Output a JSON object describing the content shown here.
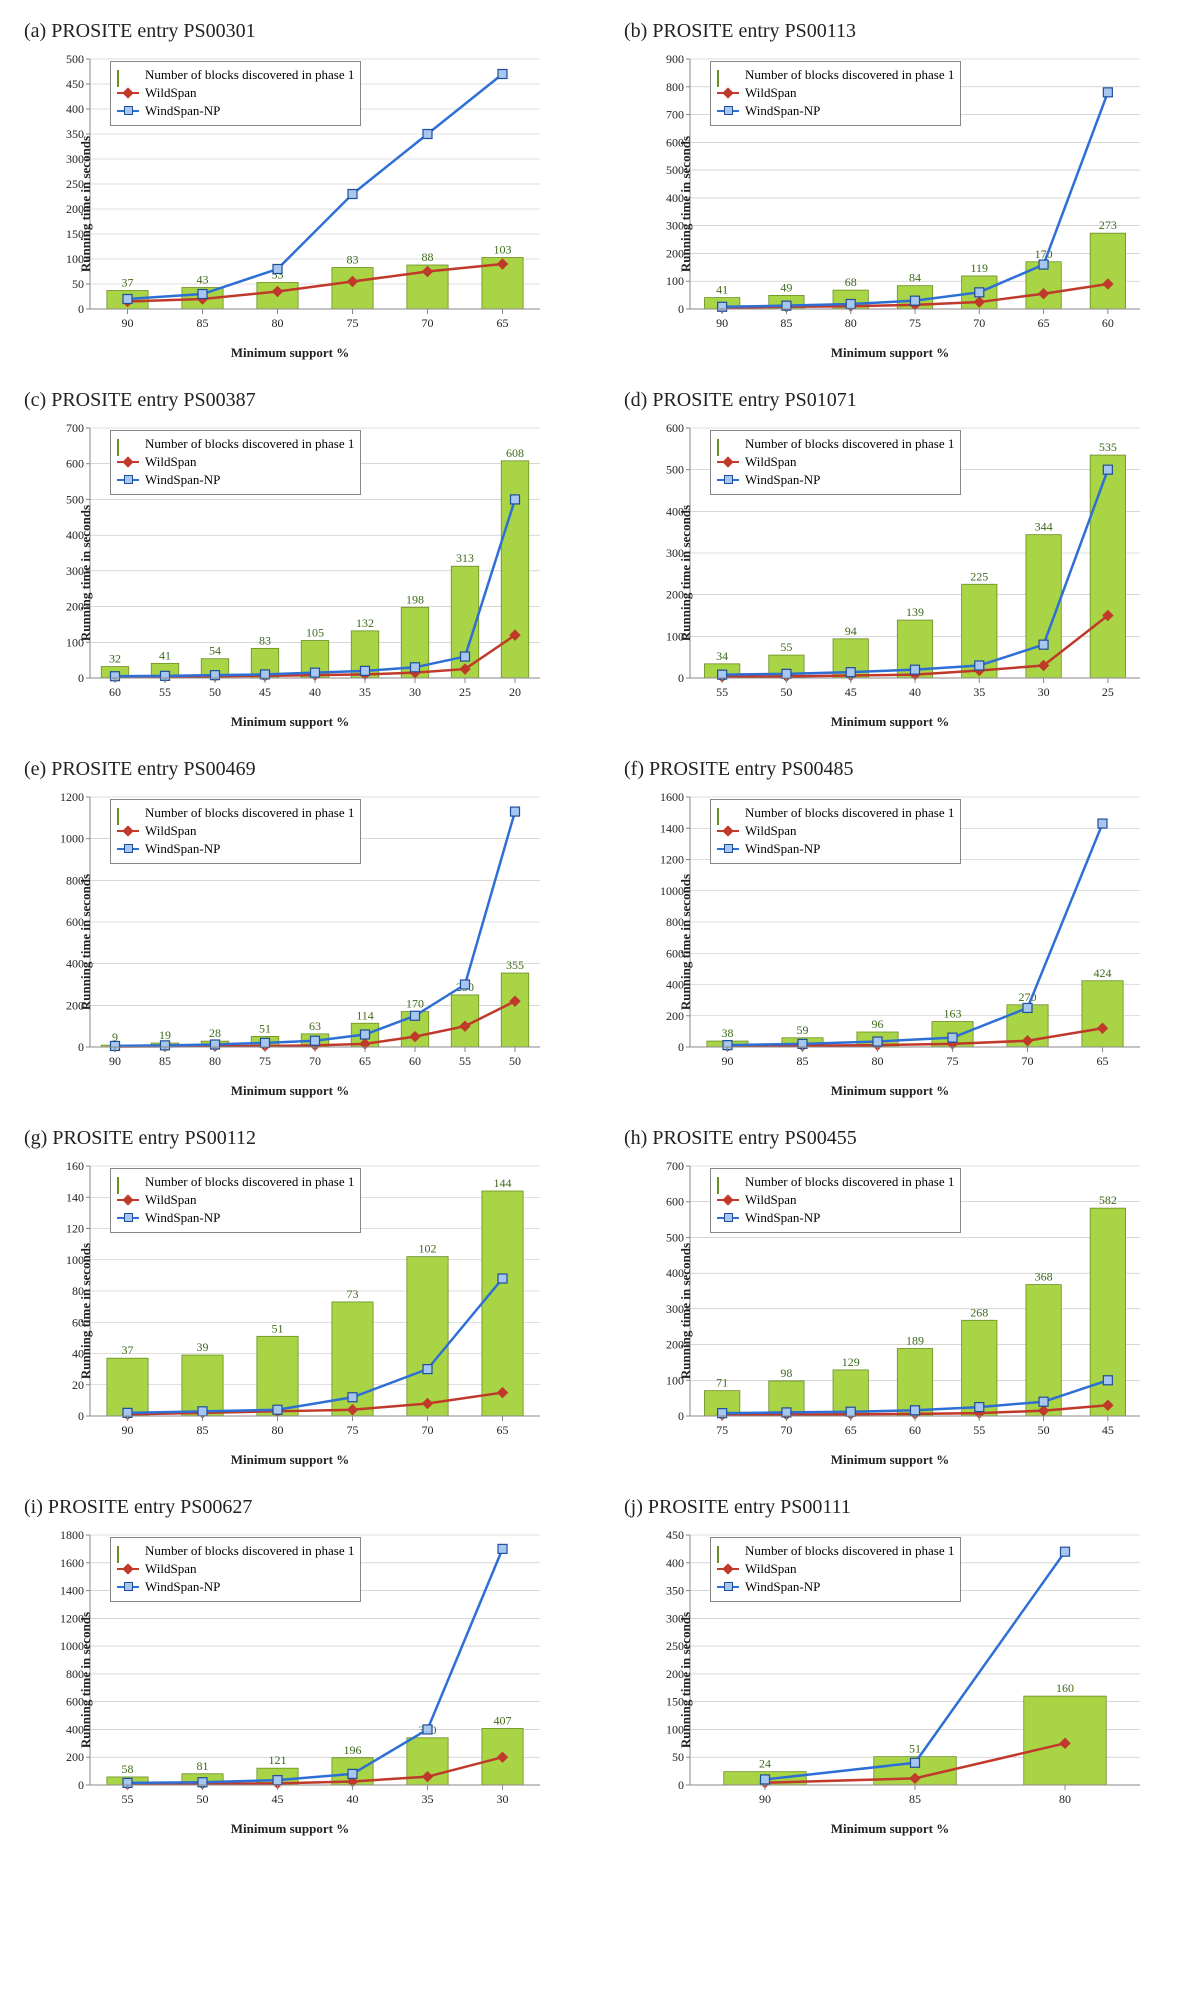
{
  "colors": {
    "bar_fill": "#a8d445",
    "bar_stroke": "#6b8e23",
    "wild_line": "#c0392b",
    "wild_marker": "#c0392b",
    "wind_line": "#2e6fd6",
    "wind_marker_fill": "#a7c7f0",
    "wind_marker_stroke": "#1f4e99",
    "grid": "#bfbfbf",
    "axis": "#888888",
    "text": "#222222",
    "bar_label": "#3d6a1a"
  },
  "legend_labels": {
    "bars": "Number of blocks discovered in phase 1",
    "wild": "WildSpan",
    "wind": "WindSpan-NP"
  },
  "axis_labels": {
    "y": "Running time in seconds",
    "x": "Minimum support %"
  },
  "panels": [
    {
      "id": "a",
      "title": "(a) PROSITE entry PS00301",
      "ymax": 500,
      "ystep": 50,
      "x": [
        "90",
        "85",
        "80",
        "75",
        "70",
        "65"
      ],
      "bars": [
        37,
        43,
        53,
        83,
        88,
        103
      ],
      "wild": [
        15,
        20,
        35,
        55,
        75,
        90
      ],
      "wind": [
        20,
        30,
        80,
        230,
        350,
        470
      ]
    },
    {
      "id": "b",
      "title": "(b) PROSITE entry PS00113",
      "ymax": 900,
      "ystep": 100,
      "x": [
        "90",
        "85",
        "80",
        "75",
        "70",
        "65",
        "60"
      ],
      "bars": [
        41,
        49,
        68,
        84,
        119,
        170,
        273
      ],
      "wild": [
        5,
        8,
        10,
        15,
        25,
        55,
        90
      ],
      "wind": [
        8,
        12,
        18,
        30,
        60,
        160,
        780
      ]
    },
    {
      "id": "c",
      "title": "(c) PROSITE entry PS00387",
      "ymax": 700,
      "ystep": 100,
      "x": [
        "60",
        "55",
        "50",
        "45",
        "40",
        "35",
        "30",
        "25",
        "20"
      ],
      "bars": [
        32,
        41,
        54,
        83,
        105,
        132,
        198,
        313,
        608
      ],
      "wild": [
        3,
        4,
        5,
        6,
        8,
        10,
        15,
        25,
        120
      ],
      "wind": [
        5,
        6,
        8,
        10,
        15,
        20,
        30,
        60,
        500
      ]
    },
    {
      "id": "d",
      "title": "(d) PROSITE entry PS01071",
      "ymax": 600,
      "ystep": 100,
      "x": [
        "55",
        "50",
        "45",
        "40",
        "35",
        "30",
        "25"
      ],
      "bars": [
        34,
        55,
        94,
        139,
        225,
        344,
        535
      ],
      "wild": [
        3,
        4,
        6,
        8,
        18,
        30,
        150
      ],
      "wind": [
        8,
        10,
        14,
        20,
        30,
        80,
        500
      ]
    },
    {
      "id": "e",
      "title": "(e) PROSITE entry PS00469",
      "ymax": 1200,
      "ystep": 200,
      "x": [
        "90",
        "85",
        "80",
        "75",
        "70",
        "65",
        "60",
        "55",
        "50"
      ],
      "bars": [
        9,
        19,
        28,
        51,
        63,
        114,
        170,
        250,
        355
      ],
      "wild": [
        2,
        3,
        4,
        5,
        8,
        15,
        50,
        100,
        220
      ],
      "wind": [
        5,
        8,
        12,
        20,
        30,
        60,
        150,
        300,
        1130
      ]
    },
    {
      "id": "f",
      "title": "(f) PROSITE entry PS00485",
      "ymax": 1600,
      "ystep": 200,
      "x": [
        "90",
        "85",
        "80",
        "75",
        "70",
        "65"
      ],
      "bars": [
        38,
        59,
        96,
        163,
        270,
        424
      ],
      "wild": [
        5,
        8,
        12,
        20,
        40,
        120
      ],
      "wind": [
        12,
        20,
        35,
        60,
        250,
        1430
      ]
    },
    {
      "id": "g",
      "title": "(g) PROSITE entry PS00112",
      "ymax": 160,
      "ystep": 20,
      "x": [
        "90",
        "85",
        "80",
        "75",
        "70",
        "65"
      ],
      "bars": [
        37,
        39,
        51,
        73,
        102,
        144
      ],
      "wild": [
        1,
        2,
        3,
        4,
        8,
        15
      ],
      "wind": [
        2,
        3,
        4,
        12,
        30,
        88
      ]
    },
    {
      "id": "h",
      "title": "(h) PROSITE entry PS00455",
      "ymax": 700,
      "ystep": 100,
      "x": [
        "75",
        "70",
        "65",
        "60",
        "55",
        "50",
        "45"
      ],
      "bars": [
        71,
        98,
        129,
        189,
        268,
        368,
        582
      ],
      "wild": [
        3,
        4,
        5,
        6,
        8,
        15,
        30
      ],
      "wind": [
        8,
        10,
        12,
        16,
        25,
        40,
        100
      ]
    },
    {
      "id": "i",
      "title": "(i) PROSITE entry PS00627",
      "ymax": 1800,
      "ystep": 200,
      "x": [
        "55",
        "50",
        "45",
        "40",
        "35",
        "30"
      ],
      "bars": [
        58,
        81,
        121,
        196,
        340,
        407
      ],
      "wild": [
        5,
        8,
        12,
        25,
        60,
        200
      ],
      "wind": [
        15,
        20,
        35,
        80,
        400,
        1700
      ]
    },
    {
      "id": "j",
      "title": "(j) PROSITE entry PS00111",
      "ymax": 450,
      "ystep": 50,
      "x": [
        "90",
        "85",
        "80"
      ],
      "bars": [
        24,
        51,
        160
      ],
      "wild": [
        4,
        12,
        75
      ],
      "wind": [
        10,
        40,
        420
      ]
    }
  ]
}
